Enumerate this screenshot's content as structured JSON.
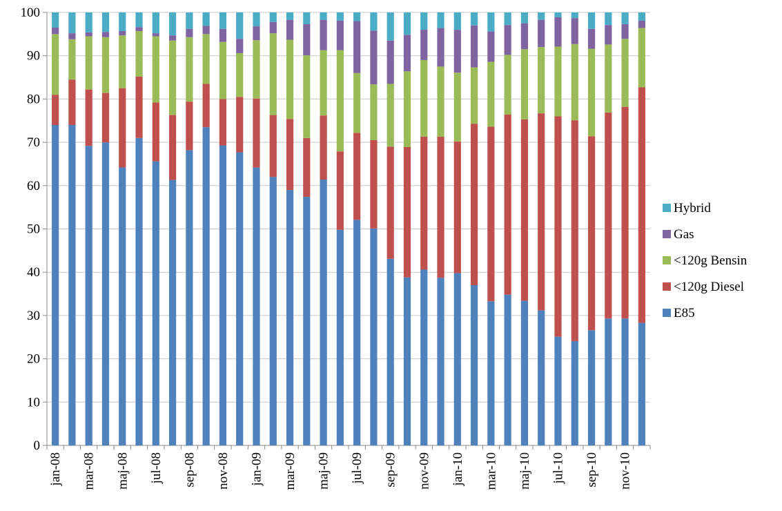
{
  "chart_data": {
    "type": "stacked_bar",
    "categories": [
      "jan-08",
      null,
      "mar-08",
      null,
      "maj-08",
      null,
      "jul-08",
      null,
      "sep-08",
      null,
      "nov-08",
      null,
      "jan-09",
      null,
      "mar-09",
      null,
      "maj-09",
      null,
      "jul-09",
      null,
      "sep-09",
      null,
      "nov-09",
      null,
      "jan-10",
      null,
      "mar-10",
      null,
      "maj-10",
      null,
      "jul-10",
      null,
      "sep-10",
      null,
      "nov-10",
      null
    ],
    "series": [
      {
        "name": "E85",
        "color": "#4f81bd",
        "values": [
          74,
          74,
          69.2,
          70,
          64.2,
          71,
          65.6,
          61.3,
          68.2,
          73.5,
          69.3,
          67.7,
          64.2,
          62,
          59,
          57.4,
          61.4,
          49.8,
          52.1,
          50.1,
          43.1,
          38.8,
          40.6,
          38.7,
          39.8,
          37,
          33.3,
          34.8,
          33.4,
          31.2,
          25.1,
          24.1,
          26.6,
          29.3,
          29.3,
          28.3
        ]
      },
      {
        "name": "<120g Diesel",
        "color": "#c0504d",
        "values": [
          7,
          10.5,
          13,
          11.4,
          18.3,
          14.2,
          13.6,
          15,
          11.2,
          10,
          10.7,
          12.8,
          15.9,
          14.3,
          16.4,
          13.6,
          14.8,
          18.1,
          20.1,
          20.4,
          25.9,
          30.1,
          30.7,
          32.6,
          30.4,
          37.3,
          40.3,
          41.6,
          41.9,
          45.5,
          50.9,
          51,
          44.8,
          47.6,
          48.9,
          54.4
        ]
      },
      {
        "name": "<120g Bensin",
        "color": "#9bbb59",
        "values": [
          14,
          9.3,
          12.3,
          12.9,
          12.2,
          10.5,
          15.3,
          17.2,
          14.9,
          11.5,
          13.2,
          10.1,
          13.5,
          18.9,
          18.3,
          19.1,
          15.1,
          23.4,
          13.8,
          12.9,
          14.5,
          17.5,
          17.7,
          16.2,
          15.9,
          13,
          15,
          13.8,
          16.2,
          15.3,
          16.1,
          17.6,
          20.2,
          15.7,
          15.7,
          13.7
        ]
      },
      {
        "name": "Gas",
        "color": "#8064a2",
        "values": [
          1.5,
          1.4,
          0.9,
          1.2,
          1,
          0.9,
          0.7,
          1.2,
          1.9,
          1.9,
          3,
          3.3,
          3.2,
          2.6,
          4.6,
          7.2,
          7,
          6.8,
          12,
          12.4,
          10,
          8.4,
          7,
          8.9,
          9.9,
          9.7,
          7,
          6.9,
          6,
          6.3,
          6.8,
          6,
          4.6,
          4.5,
          3.4,
          1.7
        ]
      },
      {
        "name": "Hybrid",
        "color": "#4bacc6",
        "values": [
          3.5,
          4.8,
          4.6,
          4.5,
          4.3,
          3.4,
          4.8,
          5.3,
          3.8,
          3.1,
          3.8,
          6.1,
          3.2,
          2.2,
          1.7,
          2.7,
          1.7,
          1.9,
          2,
          4.2,
          6.5,
          5.2,
          4,
          3.6,
          4,
          3,
          4.4,
          2.9,
          2.5,
          1.7,
          1.1,
          1.3,
          3.8,
          2.9,
          2.7,
          1.9
        ]
      }
    ],
    "ylim": [
      0,
      100
    ],
    "yticks": [
      0,
      10,
      20,
      30,
      40,
      50,
      60,
      70,
      80,
      90,
      100
    ],
    "grid": true,
    "legend": "right"
  }
}
